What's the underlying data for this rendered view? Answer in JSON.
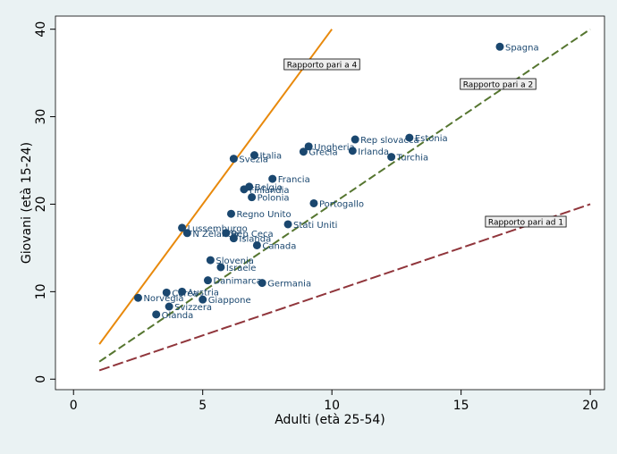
{
  "chart_data": {
    "type": "scatter",
    "x_label": "Adulti (età 25-54)",
    "y_label": "Giovani (età 15-24)",
    "xlim": [
      -0.7,
      20.55
    ],
    "ylim": [
      -1.2,
      41.5
    ],
    "xticks": [
      0,
      5,
      10,
      15,
      20
    ],
    "yticks": [
      0,
      10,
      20,
      30,
      40
    ],
    "color": "#1a476f",
    "labels": [
      "Spagna",
      "Estonia",
      "Rep slovacca",
      "Ungheria",
      "Irlanda",
      "Grecia",
      "Turchia",
      "Italia",
      "Svezia",
      "Francia",
      "Belgio",
      "Finlandia",
      "Polonia",
      "Portogallo",
      "Regno Unito",
      "Stati Uniti",
      "Lussemburgo",
      "N Zelanda",
      "Rep Ceca",
      "Islanda",
      "Canada",
      "Slovenia",
      "Israele",
      "Danimarca",
      "Germania",
      "Austria",
      "Corea",
      "Giappone",
      "Norvegia",
      "Svizzera",
      "Olanda"
    ],
    "x": [
      16.5,
      13.0,
      10.9,
      9.1,
      10.8,
      8.9,
      12.3,
      7.0,
      6.2,
      7.7,
      6.8,
      6.6,
      6.9,
      9.3,
      6.1,
      8.3,
      4.2,
      4.4,
      5.9,
      6.2,
      7.1,
      5.3,
      5.7,
      5.2,
      7.3,
      4.2,
      3.6,
      5.0,
      2.5,
      3.7,
      3.2
    ],
    "values": [
      38.0,
      27.6,
      27.4,
      26.6,
      26.1,
      26.0,
      25.4,
      25.6,
      25.2,
      22.9,
      22.0,
      21.7,
      20.8,
      20.1,
      18.9,
      17.7,
      17.3,
      16.7,
      16.7,
      16.1,
      15.3,
      13.6,
      12.8,
      11.3,
      11.0,
      10.0,
      9.9,
      9.1,
      9.3,
      8.3,
      7.4
    ],
    "lines": [
      {
        "label": "Rapporto pari a 4",
        "color": "#e8890c",
        "x": [
          1,
          10
        ],
        "values": [
          4,
          40
        ]
      },
      {
        "label": "Rapporto pari a 2",
        "color": "#55752f",
        "x": [
          1,
          20
        ],
        "values": [
          2,
          40
        ]
      },
      {
        "label": "Rapporto pari ad 1",
        "color": "#90353b",
        "x": [
          1,
          20
        ],
        "values": [
          1,
          20
        ]
      }
    ]
  }
}
